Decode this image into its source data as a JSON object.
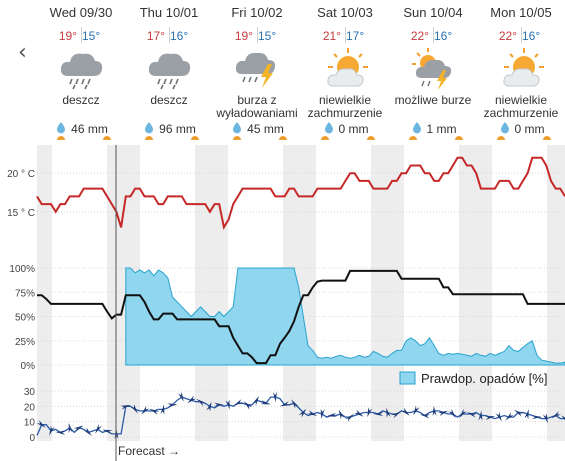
{
  "nav": {
    "prev_icon": "chevron-left-icon",
    "prev_glyph": "‹"
  },
  "days": [
    {
      "name": "Wed 09/30",
      "tmax": "19°",
      "tmin": "15°",
      "icon": "rain-cloud-icon",
      "desc": "deszcz",
      "precip": "46 mm"
    },
    {
      "name": "Thu 10/01",
      "tmax": "17°",
      "tmin": "16°",
      "icon": "rain-cloud-icon",
      "desc": "deszcz",
      "precip": "96 mm"
    },
    {
      "name": "Fri 10/02",
      "tmax": "19°",
      "tmin": "15°",
      "icon": "thunderstorm-icon",
      "desc": "burza z wyładowaniami",
      "precip": "45 mm"
    },
    {
      "name": "Sat 10/03",
      "tmax": "21°",
      "tmin": "17°",
      "icon": "partly-cloudy-icon",
      "desc": "niewielkie zachmurzenie",
      "precip": "0 mm"
    },
    {
      "name": "Sun 10/04",
      "tmax": "22°",
      "tmin": "16°",
      "icon": "sun-storm-icon",
      "desc": "możliwe burze",
      "precip": "1 mm"
    },
    {
      "name": "Mon 10/05",
      "tmax": "22°",
      "tmin": "16°",
      "icon": "partly-cloudy-icon",
      "desc": "niewielkie zachmurzenie",
      "precip": "0 mm"
    }
  ],
  "colors": {
    "temperature_line": "#c62828",
    "cloud_line": "#111111",
    "precip_fill": "#8fd6ee",
    "precip_stroke": "#2aa3cf",
    "wind_line": "#2b5aa8",
    "wind_arrow": "#1e3c78",
    "night_band": "#ededed",
    "max_temp": "#c43b3b",
    "min_temp": "#2a6fb0"
  },
  "chart_data": [
    {
      "type": "line",
      "title": "",
      "ylabel": "",
      "ylim": [
        12,
        23
      ],
      "y_ticks": [
        "20 ° C",
        "15 ° C"
      ],
      "y_tick_values": [
        20,
        15
      ],
      "hour_step": 3,
      "series": [
        {
          "values": [
            17,
            16,
            16,
            16,
            15,
            16,
            16,
            17,
            17,
            17,
            18,
            18,
            18,
            18,
            18,
            17,
            16,
            15,
            13,
            17,
            17,
            18,
            18,
            17,
            17,
            17,
            16,
            16,
            17,
            17,
            17,
            17,
            16,
            16,
            16,
            16,
            16,
            15,
            16,
            16,
            13,
            14,
            16,
            17,
            18,
            18,
            18,
            18,
            18,
            18,
            18,
            17,
            17,
            17,
            18,
            18,
            17,
            17,
            17,
            17,
            18,
            18,
            18,
            18,
            18,
            18,
            19,
            20,
            20,
            19,
            19,
            19,
            18,
            18,
            18,
            18,
            19,
            19,
            20,
            20,
            21,
            21,
            21,
            20,
            20,
            19,
            19,
            20,
            20,
            21,
            22,
            22,
            21,
            21,
            20,
            18,
            18,
            18,
            18,
            19,
            19,
            19,
            18,
            18,
            19,
            20,
            22,
            22,
            22,
            21,
            19,
            18,
            18,
            17
          ]
        }
      ]
    },
    {
      "type": "line",
      "title": "",
      "ylim": [
        0,
        100
      ],
      "y_ticks": [
        "100%",
        "75%",
        "50%",
        "25%",
        "0%"
      ],
      "y_tick_values": [
        100,
        75,
        50,
        25,
        0
      ],
      "legend": "Prawdop. opadów [%]",
      "series": [
        {
          "name": "Prawdop. opadów [%]",
          "values": [
            0,
            0,
            0,
            0,
            0,
            0,
            0,
            0,
            0,
            0,
            0,
            0,
            0,
            0,
            0,
            0,
            0,
            0,
            0,
            100,
            100,
            95,
            98,
            95,
            98,
            92,
            98,
            95,
            90,
            70,
            65,
            60,
            55,
            50,
            55,
            60,
            55,
            50,
            50,
            55,
            50,
            55,
            60,
            100,
            100,
            100,
            100,
            100,
            100,
            100,
            100,
            100,
            100,
            100,
            100,
            100,
            80,
            50,
            20,
            15,
            8,
            7,
            8,
            7,
            9,
            10,
            8,
            7,
            8,
            10,
            8,
            9,
            14,
            12,
            9,
            8,
            12,
            15,
            15,
            25,
            28,
            25,
            20,
            22,
            28,
            20,
            12,
            10,
            12,
            11,
            12,
            11,
            10,
            9,
            12,
            10,
            9,
            12,
            10,
            12,
            14,
            20,
            15,
            14,
            18,
            22,
            25,
            10,
            5,
            4,
            3,
            2,
            2,
            3
          ]
        },
        {
          "values": [
            72,
            72,
            68,
            63,
            63,
            63,
            63,
            63,
            63,
            63,
            63,
            63,
            63,
            63,
            63,
            55,
            48,
            52,
            52,
            72,
            72,
            72,
            72,
            65,
            55,
            47,
            47,
            53,
            53,
            53,
            47,
            47,
            47,
            47,
            47,
            47,
            47,
            47,
            47,
            40,
            40,
            40,
            28,
            20,
            12,
            12,
            8,
            2,
            2,
            2,
            10,
            10,
            22,
            28,
            35,
            45,
            60,
            72,
            72,
            80,
            86,
            87,
            87,
            87,
            87,
            87,
            87,
            97,
            97,
            97,
            97,
            97,
            97,
            97,
            97,
            97,
            97,
            97,
            89,
            89,
            89,
            89,
            89,
            89,
            89,
            89,
            89,
            80,
            80,
            73,
            73,
            73,
            73,
            73,
            73,
            73,
            73,
            73,
            73,
            73,
            73,
            73,
            73,
            73,
            73,
            63,
            63,
            63,
            63,
            63,
            63,
            63,
            63,
            63
          ]
        }
      ]
    },
    {
      "type": "line",
      "title": "",
      "ylim": [
        0,
        30
      ],
      "y_ticks": [
        "30",
        "20",
        "10",
        "0"
      ],
      "y_tick_values": [
        30,
        20,
        10,
        0
      ],
      "series": [
        {
          "values": [
            1,
            8,
            8,
            4,
            5,
            3,
            4,
            6,
            3,
            6,
            5,
            3,
            4,
            5,
            3,
            4,
            2,
            2,
            2,
            20,
            20,
            18,
            17,
            17,
            17,
            17,
            18,
            18,
            19,
            21,
            24,
            26,
            25,
            24,
            23,
            23,
            22,
            20,
            19,
            21,
            20,
            21,
            20,
            22,
            22,
            21,
            21,
            24,
            23,
            22,
            26,
            26,
            25,
            21,
            21,
            22,
            19,
            16,
            14,
            15,
            16,
            15,
            13,
            14,
            14,
            15,
            13,
            13,
            14,
            15,
            16,
            16,
            16,
            15,
            17,
            16,
            15,
            15,
            17,
            16,
            16,
            17,
            16,
            14,
            16,
            17,
            17,
            16,
            15,
            15,
            13,
            15,
            15,
            15,
            16,
            14,
            14,
            13,
            12,
            13,
            14,
            13,
            13,
            16,
            16,
            15,
            14,
            13,
            12,
            12,
            13,
            14,
            12,
            12
          ]
        }
      ]
    }
  ],
  "forecast_label": "Forecast →"
}
